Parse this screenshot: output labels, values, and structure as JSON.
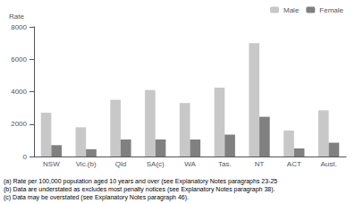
{
  "chart_data": {
    "type": "bar",
    "categories": [
      "NSW",
      "Vic.(b)",
      "Qld",
      "SA(c)",
      "WA",
      "Tas.",
      "NT",
      "ACT",
      "Aust."
    ],
    "series": [
      {
        "name": "Male",
        "color": "#c8c8c8",
        "values": [
          2700,
          1800,
          3500,
          4100,
          3300,
          4250,
          7000,
          1600,
          2850
        ]
      },
      {
        "name": "Female",
        "color": "#808080",
        "values": [
          700,
          450,
          1050,
          1050,
          1050,
          1350,
          2450,
          500,
          850
        ]
      }
    ],
    "y_label": "Rate",
    "ylim": [
      0,
      8000
    ],
    "yticks": [
      0,
      2000,
      4000,
      6000,
      8000
    ],
    "grid": false,
    "legend": "upper right",
    "annotations": [
      "(a) Rate per 100,000 population aged 10 years and over (see Explanatory Notes paragraphs 23-25",
      "(b) Data are understated as excludes most penalty notices (see Explanatory Notes paragraph 38).",
      "(c) Data may be overstated (see Explanatory Notes paragraph 46)."
    ]
  }
}
